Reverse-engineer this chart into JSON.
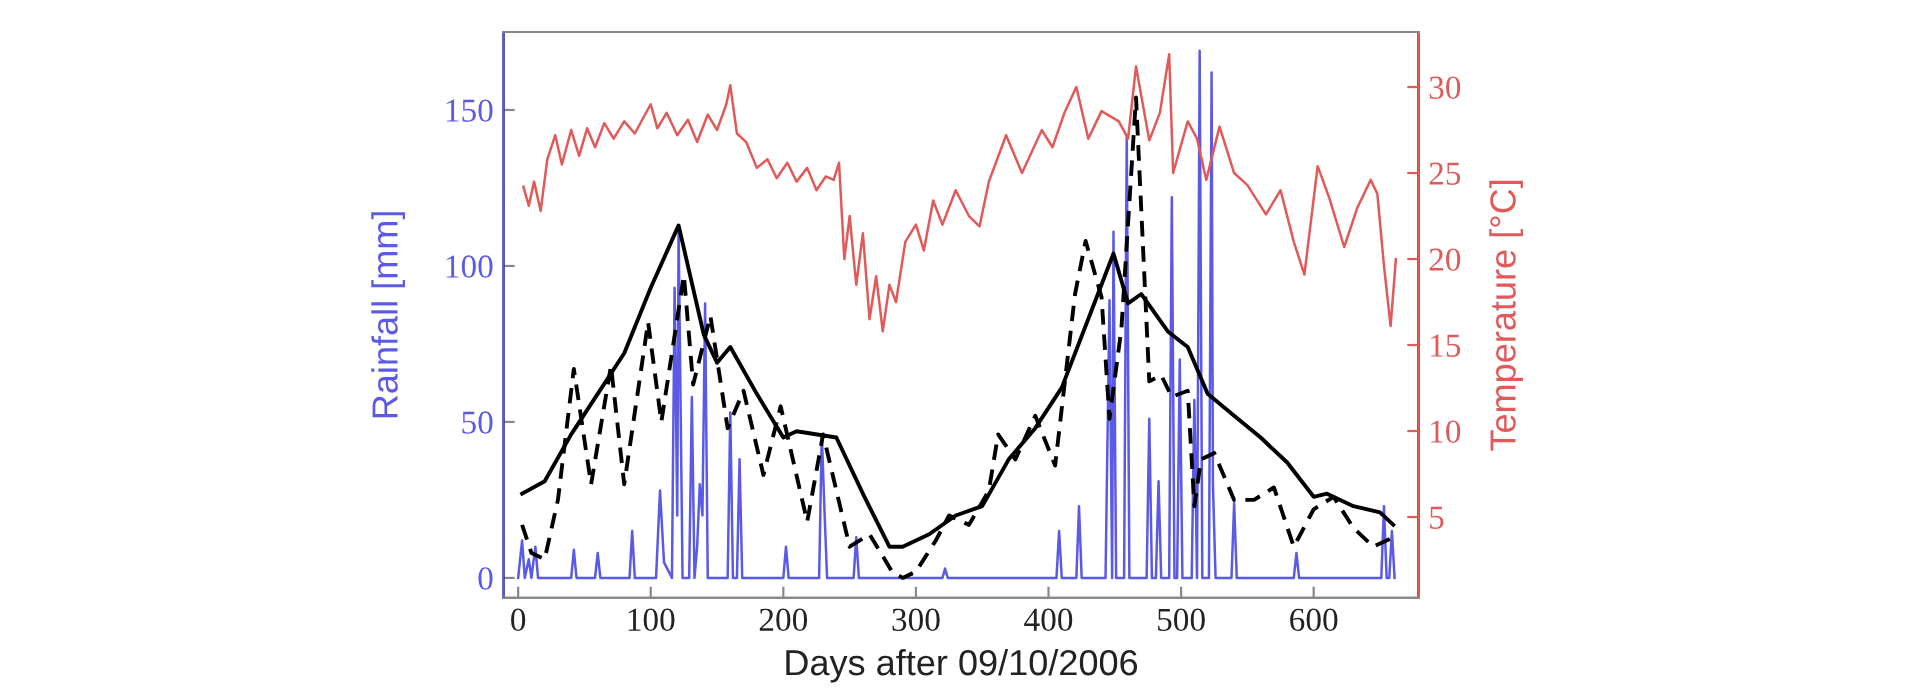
{
  "chart_data": {
    "type": "line",
    "xlabel": "Days after 09/10/2006",
    "ylabel": "Rainfall [mm]",
    "y2label": "Temperature [°C]",
    "xlim": [
      -11,
      679
    ],
    "xticks": [
      0,
      100,
      200,
      300,
      400,
      500,
      600
    ],
    "ylim": [
      -6.4,
      175
    ],
    "yticks": [
      0,
      50,
      100,
      150
    ],
    "y2lim": [
      0.3,
      33.2
    ],
    "y2ticks": [
      5,
      10,
      15,
      20,
      25,
      30
    ],
    "grid": false,
    "legend": false,
    "marker": "none",
    "series": [
      {
        "color": "#5a5ae6",
        "axis": "y",
        "line_style": "solid",
        "x": [
          0,
          3,
          5,
          8,
          10,
          13,
          15,
          40,
          42,
          44,
          58,
          60,
          62,
          84,
          86,
          88,
          104,
          107,
          110,
          116,
          118,
          120,
          121,
          124,
          129,
          131,
          133,
          135,
          137,
          139,
          141,
          143,
          158,
          160,
          162,
          165,
          167,
          169,
          200,
          202,
          204,
          227,
          229,
          231,
          233,
          253,
          255,
          257,
          320,
          322,
          324,
          406,
          408,
          410,
          421,
          423,
          425,
          443,
          446,
          448,
          449,
          451,
          457,
          459,
          461,
          474,
          476,
          478,
          481,
          483,
          485,
          491,
          493,
          495,
          497,
          499,
          501,
          508,
          510,
          512,
          514,
          516,
          521,
          523,
          524,
          526,
          538,
          540,
          542,
          585,
          587,
          589,
          651,
          653,
          655,
          657,
          659,
          661
        ],
        "values": [
          0,
          12,
          0,
          6,
          0,
          10,
          0,
          0,
          9,
          0,
          0,
          8,
          0,
          0,
          15,
          0,
          0,
          28,
          5,
          0,
          93,
          20,
          112,
          0,
          0,
          58,
          0,
          10,
          30,
          20,
          88,
          0,
          0,
          53,
          0,
          0,
          38,
          0,
          0,
          10,
          0,
          0,
          46,
          22,
          0,
          0,
          13,
          0,
          0,
          3,
          0,
          0,
          15,
          0,
          0,
          23,
          0,
          0,
          89,
          0,
          111,
          0,
          0,
          142,
          0,
          0,
          51,
          0,
          0,
          31,
          0,
          0,
          122,
          0,
          0,
          70,
          0,
          0,
          57,
          0,
          169,
          0,
          0,
          162,
          30,
          0,
          0,
          24,
          0,
          0,
          8,
          0,
          0,
          23,
          0,
          0,
          15,
          0
        ]
      },
      {
        "color": "#000000",
        "axis": "y",
        "line_style": "solid",
        "x": [
          3,
          20,
          40,
          60,
          80,
          100,
          121,
          140,
          150,
          160,
          180,
          200,
          210,
          240,
          260,
          280,
          290,
          310,
          330,
          350,
          370,
          390,
          410,
          430,
          449,
          460,
          470,
          490,
          505,
          520,
          540,
          560,
          580,
          600,
          610,
          630,
          650,
          660
        ],
        "values": [
          27,
          31,
          46,
          59,
          72,
          93,
          113,
          78,
          69,
          74,
          59,
          45,
          47,
          45,
          27,
          10,
          10,
          14,
          20,
          23,
          38,
          48,
          61,
          83,
          104,
          88,
          91,
          79,
          74,
          59,
          52,
          45,
          37,
          26,
          27,
          23,
          21,
          17
        ]
      },
      {
        "color": "#000000",
        "axis": "y",
        "line_style": "dashed",
        "x": [
          3,
          10,
          20,
          30,
          42,
          55,
          70,
          80,
          98,
          108,
          125,
          132,
          145,
          158,
          170,
          185,
          198,
          218,
          230,
          250,
          265,
          282,
          290,
          300,
          315,
          325,
          340,
          355,
          362,
          375,
          390,
          405,
          420,
          428,
          440,
          446,
          455,
          466,
          476,
          485,
          493,
          505,
          510,
          515,
          525,
          540,
          555,
          570,
          585,
          600,
          615,
          630,
          645,
          660
        ],
        "values": [
          17,
          8,
          6,
          25,
          67,
          30,
          68,
          30,
          82,
          50,
          97,
          62,
          84,
          48,
          60,
          33,
          55,
          18,
          46,
          10,
          14,
          2,
          0,
          2,
          12,
          20,
          17,
          28,
          46,
          38,
          52,
          36,
          91,
          108,
          90,
          51,
          80,
          154,
          63,
          65,
          58,
          60,
          23,
          38,
          40,
          25,
          25,
          29,
          10,
          22,
          26,
          16,
          10,
          13
        ]
      },
      {
        "color": "#e05a5a",
        "axis": "y2",
        "line_style": "solid",
        "x": [
          4,
          8,
          12,
          17,
          22,
          28,
          33,
          40,
          46,
          52,
          58,
          65,
          72,
          80,
          88,
          95,
          100,
          105,
          112,
          120,
          128,
          135,
          143,
          150,
          157,
          160,
          165,
          172,
          180,
          188,
          195,
          203,
          210,
          218,
          225,
          232,
          238,
          242,
          246,
          250,
          255,
          260,
          265,
          270,
          275,
          280,
          285,
          292,
          300,
          306,
          313,
          320,
          330,
          340,
          348,
          355,
          368,
          380,
          395,
          403,
          412,
          421,
          430,
          440,
          453,
          460,
          466,
          476,
          484,
          491,
          494,
          505,
          512,
          519,
          529,
          540,
          550,
          564,
          575,
          585,
          593,
          603,
          612,
          623,
          633,
          643,
          648,
          653,
          658,
          662
        ],
        "values": [
          24.2,
          23.1,
          24.5,
          22.8,
          25.8,
          27.2,
          25.5,
          27.5,
          26.0,
          27.6,
          26.5,
          27.9,
          27.0,
          28.0,
          27.3,
          28.3,
          29.0,
          27.6,
          28.5,
          27.2,
          28.1,
          26.8,
          28.4,
          27.5,
          29.0,
          30.1,
          27.3,
          26.8,
          25.3,
          25.8,
          24.7,
          25.6,
          24.5,
          25.3,
          24.0,
          24.8,
          24.6,
          25.6,
          20.0,
          22.5,
          18.5,
          21.5,
          16.5,
          19.0,
          15.8,
          18.5,
          17.5,
          21.0,
          22.0,
          20.5,
          23.4,
          22.0,
          24.0,
          22.5,
          21.9,
          24.5,
          27.2,
          25.0,
          27.5,
          26.5,
          28.5,
          30.0,
          27.0,
          28.6,
          28.0,
          27.0,
          31.2,
          26.9,
          28.5,
          31.9,
          25.0,
          28.0,
          27.0,
          24.6,
          27.7,
          25.0,
          24.3,
          22.6,
          24.0,
          21.0,
          19.1,
          25.4,
          23.5,
          20.7,
          23.0,
          24.6,
          23.8,
          19.6,
          16.1,
          20.0
        ]
      }
    ]
  }
}
